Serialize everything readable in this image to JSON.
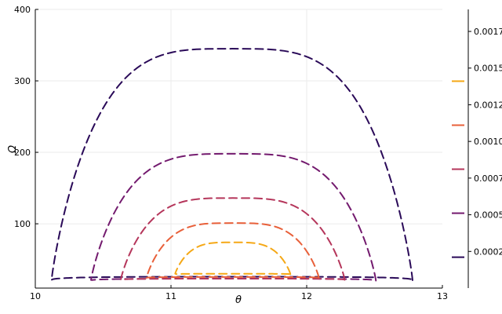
{
  "chart_data": {
    "type": "contour",
    "xlabel": "θ",
    "ylabel": "Ω",
    "xlim": [
      10,
      13
    ],
    "ylim": [
      10,
      400
    ],
    "xticks": [
      "10",
      "11",
      "12",
      "13"
    ],
    "yticks": [
      "100",
      "200",
      "300",
      "400"
    ],
    "grid": true,
    "line_style": "dashed",
    "colorbar_ticks": [
      "0.00025",
      "0.00050",
      "0.00075",
      "0.00100",
      "0.00125",
      "0.00150",
      "0.00175"
    ],
    "series": [
      {
        "level": 0.0002,
        "color": "#2a0a58",
        "x_min": 10.12,
        "x_max": 12.78,
        "y_min": 11,
        "y_max": 345
      },
      {
        "level": 0.0005,
        "color": "#731a6e",
        "x_min": 10.41,
        "x_max": 12.51,
        "y_min": 15,
        "y_max": 198
      },
      {
        "level": 0.0008,
        "color": "#b5365b",
        "x_min": 10.63,
        "x_max": 12.28,
        "y_min": 18,
        "y_max": 136
      },
      {
        "level": 0.0011,
        "color": "#e8603a",
        "x_min": 10.82,
        "x_max": 12.09,
        "y_min": 22,
        "y_max": 101
      },
      {
        "level": 0.0014,
        "color": "#f5a816",
        "x_min": 11.03,
        "x_max": 11.88,
        "y_min": 28,
        "y_max": 74
      }
    ]
  }
}
